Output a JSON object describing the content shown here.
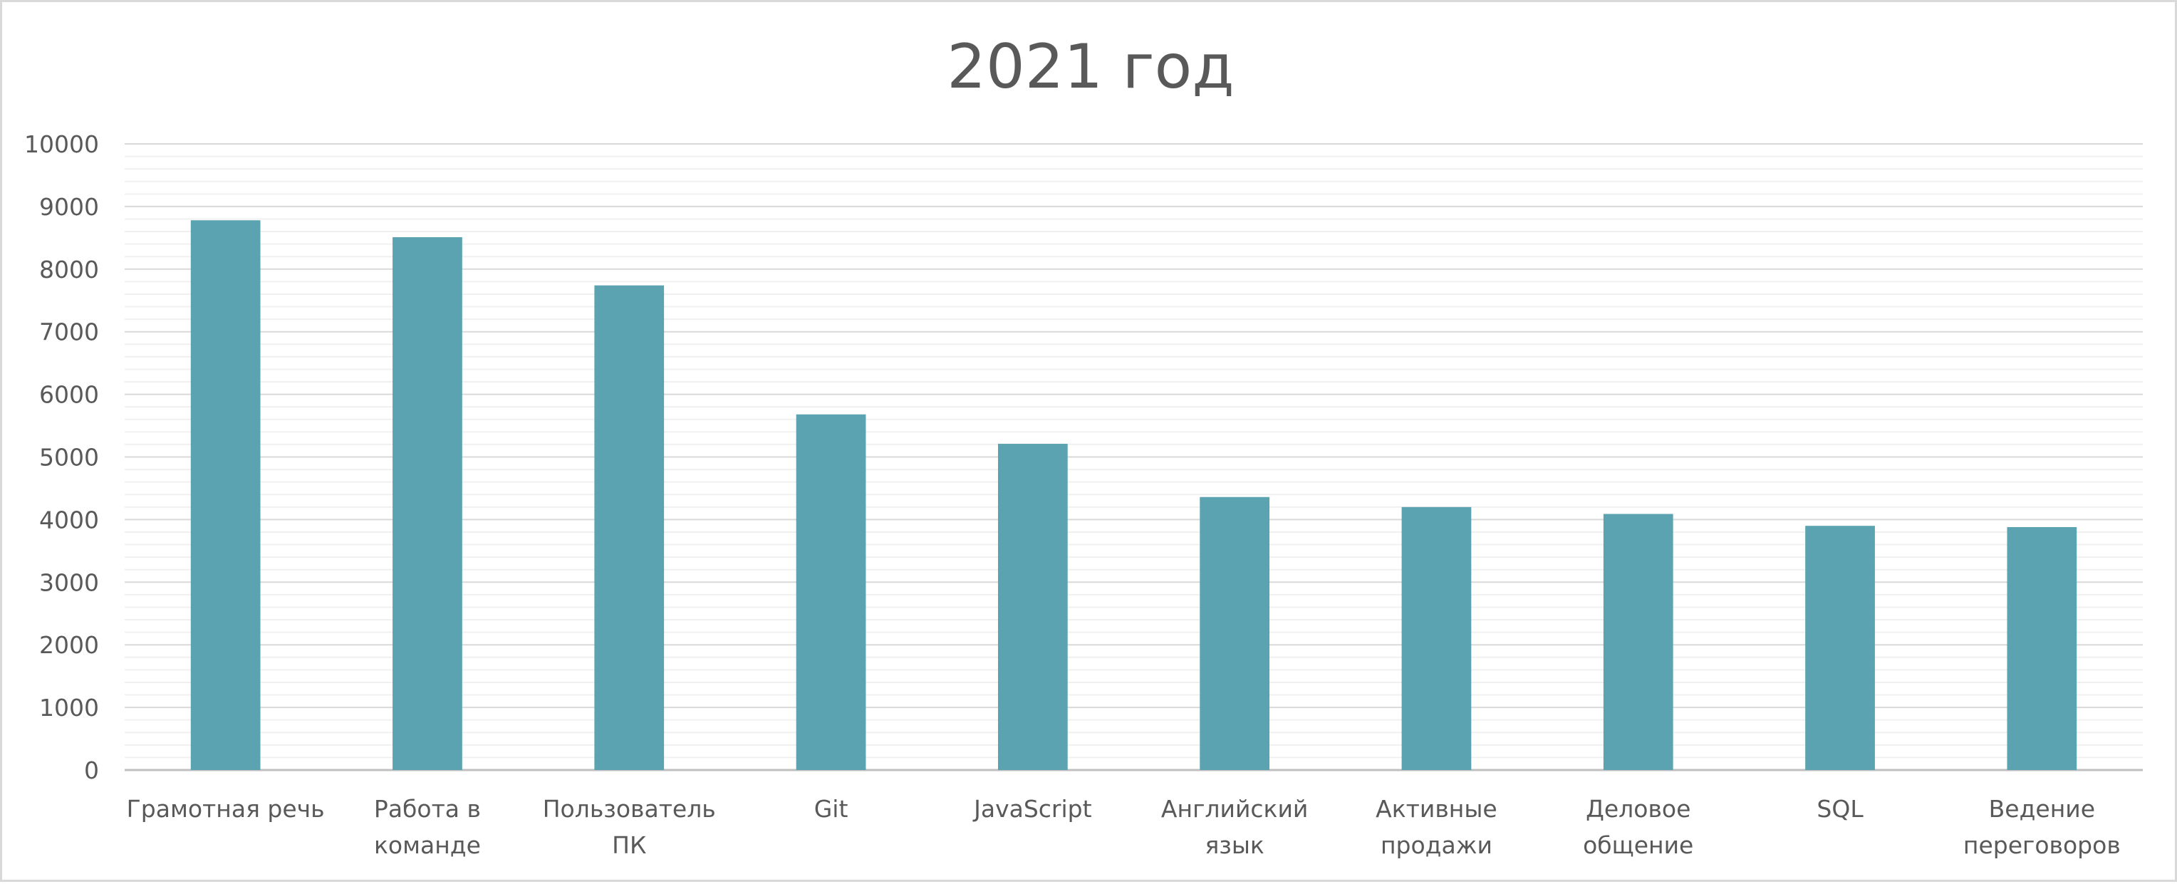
{
  "chart_data": {
    "type": "bar",
    "title": "2021 год",
    "xlabel": "",
    "ylabel": "",
    "ylim": [
      0,
      10000
    ],
    "yticks": [
      0,
      1000,
      2000,
      3000,
      4000,
      5000,
      6000,
      7000,
      8000,
      9000,
      10000
    ],
    "grid": true,
    "legend": "none",
    "color": "#5ba3b0",
    "categories": [
      [
        "Грамотная речь"
      ],
      [
        "Работа в",
        "команде"
      ],
      [
        "Пользователь",
        "ПК"
      ],
      [
        "Git"
      ],
      [
        "JavaScript"
      ],
      [
        "Английский",
        "язык"
      ],
      [
        "Активные",
        "продажи"
      ],
      [
        "Деловое",
        "общение"
      ],
      [
        "SQL"
      ],
      [
        "Ведение",
        "переговоров"
      ]
    ],
    "values": [
      8780,
      8510,
      7740,
      5680,
      5210,
      4360,
      4200,
      4090,
      3900,
      3880
    ]
  }
}
